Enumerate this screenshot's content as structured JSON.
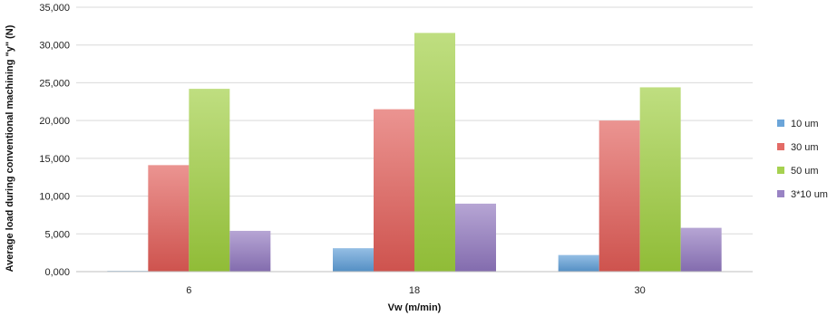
{
  "chart_data": {
    "type": "bar",
    "xlabel": "Vw (m/min)",
    "ylabel": "Average load during conventional machining \"y\" (N)",
    "categories": [
      "6",
      "18",
      "30"
    ],
    "ylim": [
      0,
      35000
    ],
    "yticks": [
      0,
      5000,
      10000,
      15000,
      20000,
      25000,
      30000,
      35000
    ],
    "ytick_labels": [
      "0,000",
      "5,000",
      "10,000",
      "15,000",
      "20,000",
      "25,000",
      "30,000",
      "35,000"
    ],
    "grid": true,
    "legend_position": "right",
    "series": [
      {
        "name": "10 um",
        "color": "#5b9bd5",
        "values": [
          100,
          3100,
          2200
        ]
      },
      {
        "name": "30 um",
        "color": "#e05a55",
        "values": [
          14100,
          21500,
          20000
        ]
      },
      {
        "name": "50 um",
        "color": "#9ccc3c",
        "values": [
          24200,
          31600,
          24400
        ]
      },
      {
        "name": "3*10 um",
        "color": "#8e75bd",
        "values": [
          5400,
          9000,
          5800
        ]
      }
    ]
  }
}
